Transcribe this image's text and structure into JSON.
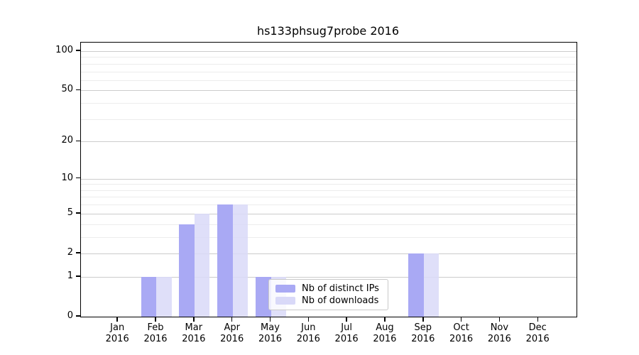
{
  "title": "hs133phsug7probe 2016",
  "chart_data": {
    "type": "bar",
    "title": "hs133phsug7probe 2016",
    "categories": [
      {
        "month": "Jan",
        "year": "2016"
      },
      {
        "month": "Feb",
        "year": "2016"
      },
      {
        "month": "Mar",
        "year": "2016"
      },
      {
        "month": "Apr",
        "year": "2016"
      },
      {
        "month": "May",
        "year": "2016"
      },
      {
        "month": "Jun",
        "year": "2016"
      },
      {
        "month": "Jul",
        "year": "2016"
      },
      {
        "month": "Aug",
        "year": "2016"
      },
      {
        "month": "Sep",
        "year": "2016"
      },
      {
        "month": "Oct",
        "year": "2016"
      },
      {
        "month": "Nov",
        "year": "2016"
      },
      {
        "month": "Dec",
        "year": "2016"
      }
    ],
    "series": [
      {
        "name": "Nb of distinct IPs",
        "color": "#a9a9f4",
        "values": [
          0,
          1,
          4,
          6,
          1,
          0,
          0,
          0,
          2,
          0,
          0,
          0
        ]
      },
      {
        "name": "Nb of downloads",
        "color": "#d9d9f8",
        "values": [
          0,
          1,
          5,
          6,
          1,
          0,
          0,
          0,
          2,
          0,
          0,
          0
        ]
      }
    ],
    "yscale": "log1p",
    "ylim": [
      0,
      116
    ],
    "y_major_ticks": [
      0,
      1,
      2,
      5,
      10,
      20,
      50,
      100
    ],
    "y_minor_ticks": [
      3,
      4,
      6,
      7,
      8,
      9,
      30,
      40,
      60,
      70,
      80,
      90
    ],
    "xlabel": "",
    "ylabel": "",
    "grid": true,
    "legend_position": "inside plot, lower center"
  },
  "colors": {
    "bar_distinct_ips": "#a9a9f4",
    "bar_downloads": "#d9d9f8",
    "grid_major": "#cccccc",
    "grid_minor": "#ececec",
    "axis": "#000000",
    "legend_border": "#c9c9c9",
    "background": "#ffffff"
  }
}
